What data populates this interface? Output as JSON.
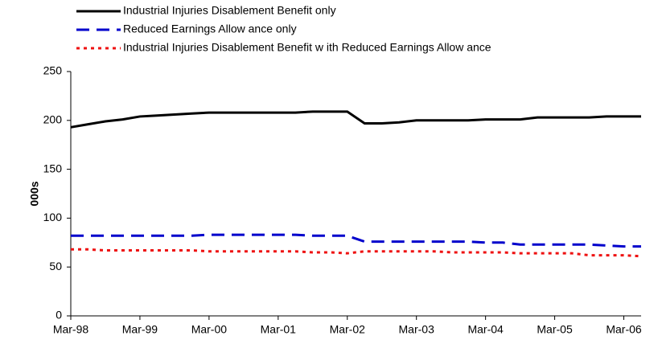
{
  "chart_data": {
    "type": "line",
    "ylabel": "000s",
    "categories": [
      "Mar-98",
      null,
      null,
      null,
      "Mar-99",
      null,
      null,
      null,
      "Mar-00",
      null,
      null,
      null,
      "Mar-01",
      null,
      null,
      null,
      "Mar-02",
      null,
      null,
      null,
      "Mar-03",
      null,
      null,
      null,
      "Mar-04",
      null,
      null,
      null,
      "Mar-05",
      null,
      null,
      null,
      "Mar-06",
      null
    ],
    "series": [
      {
        "name": "Industrial Injuries Disablement Benefit only",
        "color": "#000000",
        "values": [
          193,
          196,
          199,
          201,
          204,
          205,
          206,
          207,
          208,
          208,
          208,
          208,
          208,
          208,
          209,
          209,
          209,
          197,
          197,
          198,
          200,
          200,
          200,
          200,
          201,
          201,
          201,
          203,
          203,
          203,
          203,
          204,
          204,
          204
        ]
      },
      {
        "name": "Reduced Earnings Allow ance only",
        "color": "#0000cc",
        "values": [
          82,
          82,
          82,
          82,
          82,
          82,
          82,
          82,
          83,
          83,
          83,
          83,
          83,
          83,
          82,
          82,
          82,
          76,
          76,
          76,
          76,
          76,
          76,
          76,
          75,
          75,
          73,
          73,
          73,
          73,
          73,
          72,
          71,
          71
        ]
      },
      {
        "name": "Industrial Injuries Disablement Benefit w ith Reduced Earnings Allow ance",
        "color": "#ee1111",
        "values": [
          68,
          68,
          67,
          67,
          67,
          67,
          67,
          67,
          66,
          66,
          66,
          66,
          66,
          66,
          65,
          65,
          64,
          66,
          66,
          66,
          66,
          66,
          65,
          65,
          65,
          65,
          64,
          64,
          64,
          64,
          62,
          62,
          62,
          61
        ]
      }
    ],
    "ylim": [
      0,
      250
    ],
    "yticks": [
      0,
      50,
      100,
      150,
      200,
      250
    ],
    "grid": false
  }
}
